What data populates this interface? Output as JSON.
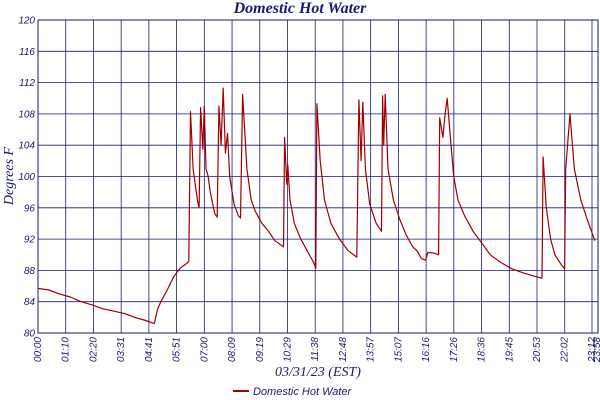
{
  "chart_data": {
    "type": "line",
    "title": "Domestic Hot Water",
    "xlabel": "03/31/23 (EST)",
    "ylabel": "Degrees F",
    "ylim": [
      80,
      120
    ],
    "yticks": [
      80,
      84,
      88,
      92,
      96,
      100,
      104,
      108,
      112,
      116,
      120
    ],
    "xticks": [
      "00:00",
      "01:10",
      "02:20",
      "03:31",
      "04:41",
      "05:51",
      "07:00",
      "08:09",
      "09:19",
      "10:29",
      "11:38",
      "12:48",
      "13:57",
      "15:07",
      "16:16",
      "17:26",
      "18:36",
      "19:45",
      "20:53",
      "22:02",
      "23:12",
      "23:58"
    ],
    "grid": true,
    "legend": "bottom",
    "colors": {
      "series": "#a00000",
      "grid": "#1a1a70",
      "text": "#1a1a70"
    },
    "series": [
      {
        "name": "Domestic Hot Water",
        "points": [
          [
            0,
            85.7
          ],
          [
            0.5,
            85.5
          ],
          [
            1.0,
            85.0
          ],
          [
            1.5,
            84.6
          ],
          [
            2.0,
            84.0
          ],
          [
            2.5,
            83.6
          ],
          [
            3.0,
            83.1
          ],
          [
            3.5,
            82.8
          ],
          [
            4.0,
            82.5
          ],
          [
            4.5,
            82.0
          ],
          [
            5.0,
            81.6
          ],
          [
            5.4,
            81.2
          ],
          [
            5.55,
            83.0
          ],
          [
            5.7,
            84.0
          ],
          [
            6.0,
            85.5
          ],
          [
            6.3,
            87.2
          ],
          [
            6.6,
            88.3
          ],
          [
            6.95,
            89.0
          ],
          [
            7.0,
            89.2
          ],
          [
            7.08,
            108.3
          ],
          [
            7.2,
            101.0
          ],
          [
            7.4,
            97.0
          ],
          [
            7.48,
            96.0
          ],
          [
            7.55,
            108.8
          ],
          [
            7.65,
            103.5
          ],
          [
            7.72,
            109.0
          ],
          [
            7.8,
            101.0
          ],
          [
            7.9,
            100.0
          ],
          [
            8.0,
            98.0
          ],
          [
            8.2,
            95.3
          ],
          [
            8.32,
            94.8
          ],
          [
            8.4,
            109.0
          ],
          [
            8.5,
            104.0
          ],
          [
            8.6,
            111.3
          ],
          [
            8.7,
            103.0
          ],
          [
            8.8,
            105.5
          ],
          [
            8.9,
            100.0
          ],
          [
            9.1,
            96.5
          ],
          [
            9.3,
            95.0
          ],
          [
            9.4,
            94.7
          ],
          [
            9.5,
            110.5
          ],
          [
            9.7,
            101.0
          ],
          [
            9.9,
            97.0
          ],
          [
            10.1,
            95.5
          ],
          [
            10.4,
            94.0
          ],
          [
            10.7,
            93.0
          ],
          [
            11.0,
            91.8
          ],
          [
            11.4,
            91.0
          ],
          [
            11.45,
            105.0
          ],
          [
            11.55,
            99.0
          ],
          [
            11.6,
            101.5
          ],
          [
            11.7,
            97.0
          ],
          [
            11.9,
            94.0
          ],
          [
            12.2,
            92.0
          ],
          [
            12.5,
            90.5
          ],
          [
            12.8,
            89.0
          ],
          [
            12.9,
            88.3
          ],
          [
            12.95,
            109.3
          ],
          [
            13.1,
            102.0
          ],
          [
            13.3,
            97.0
          ],
          [
            13.6,
            94.0
          ],
          [
            14.0,
            92.0
          ],
          [
            14.4,
            90.5
          ],
          [
            14.8,
            89.7
          ],
          [
            14.9,
            109.8
          ],
          [
            15.0,
            102.0
          ],
          [
            15.08,
            109.5
          ],
          [
            15.2,
            101.0
          ],
          [
            15.4,
            96.5
          ],
          [
            15.7,
            94.0
          ],
          [
            15.95,
            93.0
          ],
          [
            16.0,
            110.3
          ],
          [
            16.05,
            104.0
          ],
          [
            16.12,
            110.5
          ],
          [
            16.25,
            101.0
          ],
          [
            16.5,
            97.0
          ],
          [
            16.8,
            94.5
          ],
          [
            17.1,
            92.5
          ],
          [
            17.4,
            91.0
          ],
          [
            17.6,
            90.5
          ],
          [
            17.8,
            89.5
          ],
          [
            18.0,
            89.3
          ],
          [
            18.1,
            90.3
          ],
          [
            18.4,
            90.2
          ],
          [
            18.6,
            90.0
          ],
          [
            18.65,
            107.5
          ],
          [
            18.8,
            105.0
          ],
          [
            18.9,
            108.0
          ],
          [
            19.0,
            110.0
          ],
          [
            19.1,
            106.5
          ],
          [
            19.3,
            100.0
          ],
          [
            19.5,
            97.0
          ],
          [
            19.8,
            95.0
          ],
          [
            20.2,
            93.0
          ],
          [
            20.6,
            91.5
          ],
          [
            21.0,
            90.0
          ],
          [
            21.5,
            89.0
          ],
          [
            22.0,
            88.2
          ],
          [
            22.5,
            87.7
          ],
          [
            23.0,
            87.3
          ],
          [
            23.4,
            87.0
          ],
          [
            23.45,
            102.5
          ],
          [
            23.6,
            96.0
          ],
          [
            23.8,
            92.0
          ],
          [
            24.0,
            90.0
          ],
          [
            24.3,
            88.7
          ],
          [
            24.45,
            88.2
          ],
          [
            24.5,
            101.0
          ],
          [
            24.7,
            108.0
          ],
          [
            24.9,
            101.0
          ],
          [
            25.2,
            97.0
          ],
          [
            25.5,
            94.5
          ],
          [
            25.7,
            93.0
          ],
          [
            25.85,
            91.8
          ]
        ]
      }
    ]
  }
}
